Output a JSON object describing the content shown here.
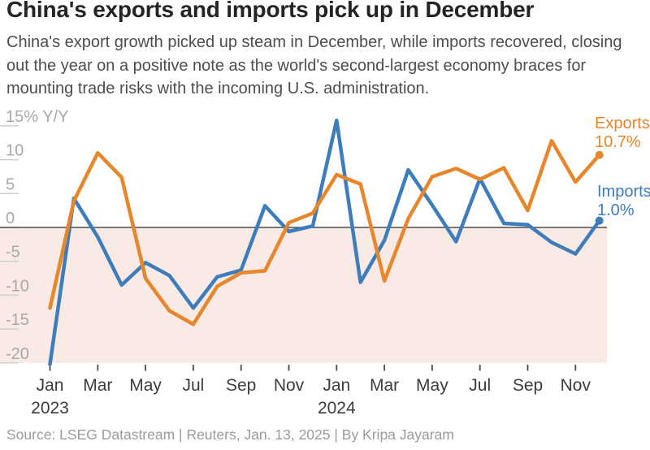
{
  "header": {
    "title": "China's exports and imports pick up in December",
    "subtitle": "China's export growth picked up steam in December, while imports recovered, closing out the year on a positive note as the world's second-largest economy braces for mounting trade risks with the incoming U.S. administration."
  },
  "chart_data": {
    "type": "line",
    "title": "China's exports and imports pick up in December",
    "ylabel": "% Y/Y",
    "months": [
      "Jan 2023",
      "Feb 2023",
      "Mar 2023",
      "Apr 2023",
      "May 2023",
      "Jun 2023",
      "Jul 2023",
      "Aug 2023",
      "Sep 2023",
      "Oct 2023",
      "Nov 2023",
      "Dec 2023",
      "Jan 2024",
      "Feb 2024",
      "Mar 2024",
      "Apr 2024",
      "May 2024",
      "Jun 2024",
      "Jul 2024",
      "Aug 2024",
      "Sep 2024",
      "Oct 2024",
      "Nov 2024",
      "Dec 2024"
    ],
    "series": [
      {
        "name": "Exports",
        "end_label": "Exports",
        "end_value": "10.7%",
        "color": "#E8862B",
        "values": [
          -11.9,
          3.9,
          11.0,
          7.4,
          -7.5,
          -12.3,
          -14.3,
          -8.7,
          -6.7,
          -6.4,
          0.7,
          2.1,
          7.8,
          6.4,
          -7.9,
          1.3,
          7.5,
          8.7,
          7.1,
          8.8,
          2.5,
          12.8,
          6.7,
          10.7
        ]
      },
      {
        "name": "Imports",
        "end_label": "Imports",
        "end_value": "1.0%",
        "color": "#3E7DBC",
        "values": [
          -21.4,
          4.3,
          -1.4,
          -8.5,
          -5.2,
          -7.1,
          -11.9,
          -7.3,
          -6.3,
          3.2,
          -0.6,
          0.2,
          15.8,
          -8.1,
          -1.9,
          8.5,
          3.3,
          -2.1,
          7.2,
          0.6,
          0.4,
          -2.2,
          -3.9,
          1.0
        ]
      }
    ],
    "y_axis": {
      "top_tick_label": "15% Y/Y",
      "ticks": [
        15,
        10,
        5,
        0,
        -5,
        -10,
        -15,
        -20
      ],
      "ylim": [
        -20.2,
        16
      ],
      "grid": "tick-stubs-left"
    },
    "x_axis": {
      "ticked_month_indices": [
        0,
        2,
        4,
        6,
        8,
        10,
        12,
        14,
        16,
        18,
        20,
        22
      ],
      "tick_labels": [
        "Jan",
        "Mar",
        "May",
        "Jul",
        "Sep",
        "Nov",
        "Jan",
        "Mar",
        "May",
        "Jul",
        "Sep",
        "Nov"
      ],
      "year_labels": [
        {
          "index": 0,
          "label": "2023"
        },
        {
          "index": 12,
          "label": "2024"
        }
      ]
    },
    "legend_position": "end-of-line-right",
    "style_colors": {
      "negative_band": "#FAEAE6",
      "zero_line": "#4D4D4D",
      "grid_stub": "#CFCFCF",
      "y_label": "#A8A8A8",
      "x_label": "#3C3C3C",
      "x_tick": "#4A4A4A"
    }
  },
  "footer": {
    "source_line": "Source: LSEG Datastream | Reuters, Jan. 13, 2025 | By Kripa Jayaram"
  }
}
